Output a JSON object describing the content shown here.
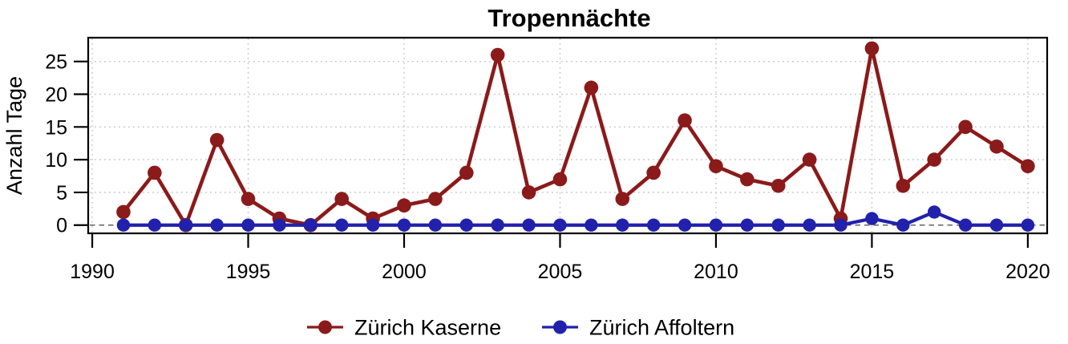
{
  "chart_data": {
    "type": "line",
    "title": "Tropennächte",
    "xlabel": "",
    "ylabel": "Anzahl Tage",
    "x": [
      1991,
      1992,
      1993,
      1994,
      1995,
      1996,
      1997,
      1998,
      1999,
      2000,
      2001,
      2002,
      2003,
      2004,
      2005,
      2006,
      2007,
      2008,
      2009,
      2010,
      2011,
      2012,
      2013,
      2014,
      2015,
      2016,
      2017,
      2018,
      2019,
      2020
    ],
    "series": [
      {
        "name": "Zürich Kaserne",
        "color": "#8B1A1A",
        "values": [
          2,
          8,
          0,
          13,
          4,
          1,
          0,
          4,
          1,
          3,
          4,
          8,
          26,
          5,
          7,
          21,
          4,
          8,
          16,
          9,
          7,
          6,
          10,
          1,
          27,
          6,
          10,
          15,
          12,
          9
        ]
      },
      {
        "name": "Zürich Affoltern",
        "color": "#2121AC",
        "values": [
          0,
          0,
          0,
          0,
          0,
          0,
          0,
          0,
          0,
          0,
          0,
          0,
          0,
          0,
          0,
          0,
          0,
          0,
          0,
          0,
          0,
          0,
          0,
          0,
          1,
          0,
          2,
          0,
          0,
          0
        ]
      }
    ],
    "x_ticks": [
      1990,
      1995,
      2000,
      2005,
      2010,
      2015,
      2020
    ],
    "y_ticks": [
      0,
      5,
      10,
      15,
      20,
      25
    ],
    "xlim": [
      1989.87,
      2020.62
    ],
    "ylim": [
      -1.26,
      28.64
    ],
    "grid": "dotted",
    "zero_line": "dashed",
    "legend_position": "bottom-center",
    "grid_color": "#C4C4C4",
    "zero_line_color": "#444444",
    "axis_color": "#000000"
  }
}
